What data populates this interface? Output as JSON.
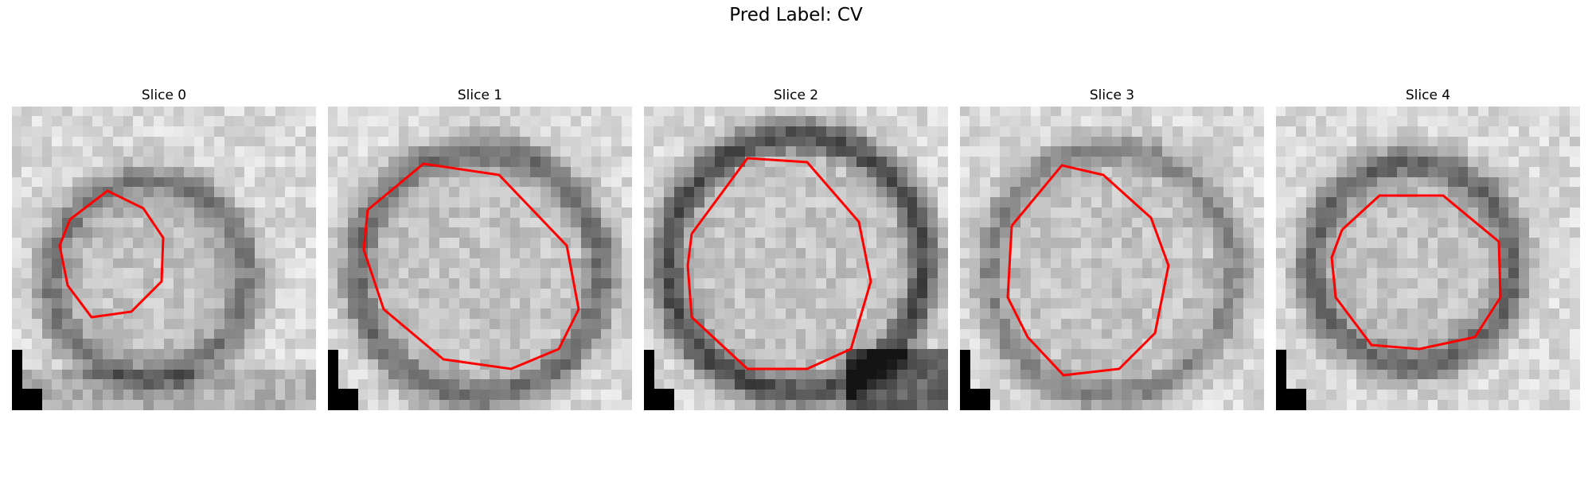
{
  "figure": {
    "title": "Pred Label: CV"
  },
  "panels": [
    {
      "title": "Slice 0"
    },
    {
      "title": "Slice 1"
    },
    {
      "title": "Slice 2"
    },
    {
      "title": "Slice 3"
    },
    {
      "title": "Slice 4"
    }
  ],
  "colors": {
    "contour": "#ff0000",
    "corner_marker": "#000000",
    "image_colormap": "grayscale"
  }
}
